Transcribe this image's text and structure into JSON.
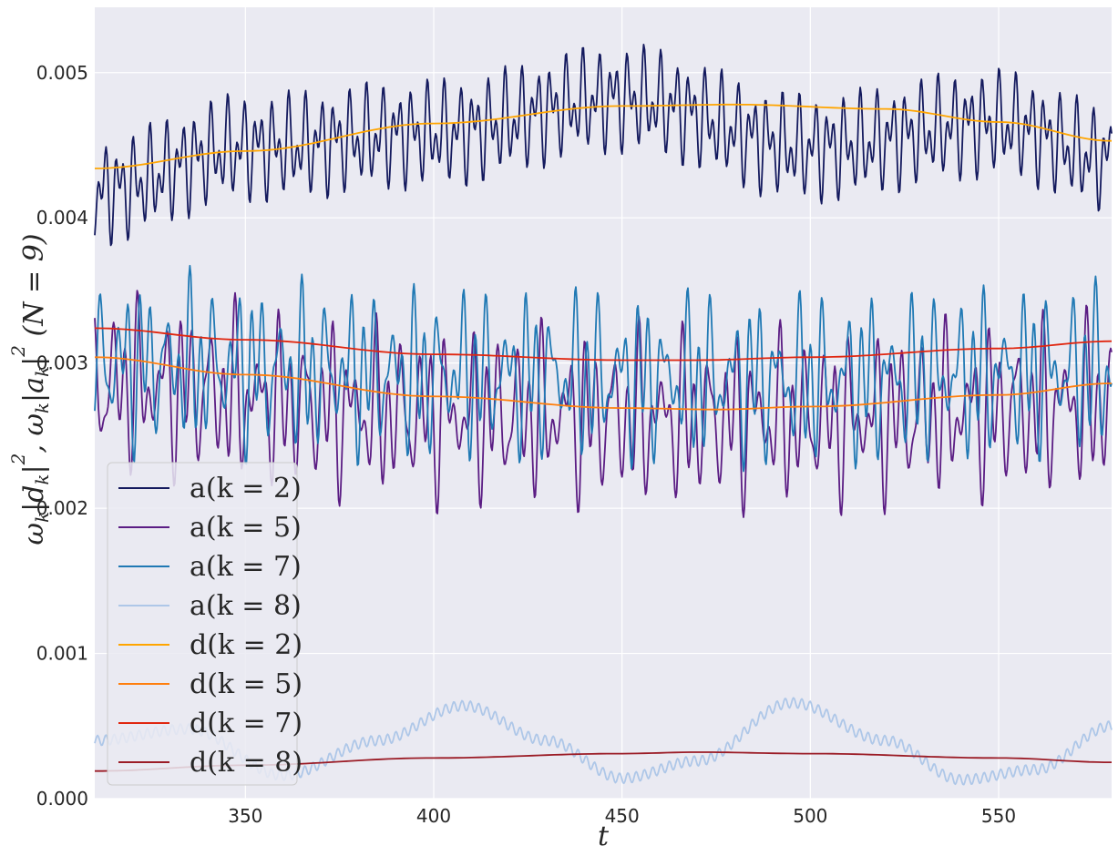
{
  "chart_data": {
    "type": "line",
    "xlabel": "t",
    "ylabel_parts": [
      "ω",
      "k",
      "|d",
      "k",
      "|",
      "2",
      ",   ω",
      "k",
      "|a",
      "k",
      "|",
      "2",
      "   (N = 9)"
    ],
    "xlim": [
      310,
      580
    ],
    "ylim": [
      0.0,
      0.00545
    ],
    "xticks": [
      350,
      400,
      450,
      500,
      550
    ],
    "xtick_labels": [
      "350",
      "400",
      "450",
      "500",
      "550"
    ],
    "yticks": [
      0.0,
      0.001,
      0.002,
      0.003,
      0.004,
      0.005
    ],
    "ytick_labels": [
      "0.000",
      "0.001",
      "0.002",
      "0.003",
      "0.004",
      "0.005"
    ],
    "grid": true,
    "legend_position": "lower-left",
    "colors": {
      "background": "#eaeaf2",
      "grid": "#ffffff"
    },
    "series": [
      {
        "name": "a(k = 2)",
        "color": "#141a5e",
        "kind": "osc",
        "base_x": [
          310,
          350,
          400,
          450,
          500,
          550,
          580
        ],
        "base_y": [
          0.00418,
          0.00448,
          0.00458,
          0.00482,
          0.00448,
          0.00465,
          0.0044
        ],
        "amp": 0.00028,
        "periods": [
          4.1,
          2.3
        ],
        "phase": 0.3
      },
      {
        "name": "a(k = 5)",
        "color": "#5b1d84",
        "kind": "osc",
        "base_x": [
          310,
          400,
          500,
          580
        ],
        "base_y": [
          0.00285,
          0.00265,
          0.00262,
          0.00272
        ],
        "amp": 0.00052,
        "periods": [
          6.3,
          3.7,
          2.9
        ],
        "phase": 1.1
      },
      {
        "name": "a(k = 7)",
        "color": "#2079b4",
        "kind": "osc",
        "base_x": [
          310,
          400,
          500,
          580
        ],
        "base_y": [
          0.003,
          0.00292,
          0.00288,
          0.00295
        ],
        "amp": 0.0005,
        "periods": [
          6.0,
          3.3,
          2.7
        ],
        "phase": 2.2
      },
      {
        "name": "a(k = 8)",
        "color": "#aec7e8",
        "kind": "osc",
        "base_x": [
          310,
          335,
          360,
          385,
          408,
          430,
          450,
          470,
          495,
          520,
          540,
          560,
          580
        ],
        "base_y": [
          0.0004,
          0.00048,
          0.00016,
          0.0004,
          0.00064,
          0.0004,
          0.00014,
          0.00026,
          0.00066,
          0.0004,
          0.00013,
          0.0002,
          0.0005
        ],
        "amp": 2.5e-05,
        "periods": [
          2.2
        ],
        "phase": 0.0
      },
      {
        "name": "d(k = 2)",
        "color": "#ffa500",
        "kind": "smooth",
        "x": [
          310,
          350,
          400,
          450,
          480,
          520,
          550,
          580
        ],
        "y": [
          0.00434,
          0.00446,
          0.00465,
          0.00477,
          0.00478,
          0.00475,
          0.00466,
          0.00453
        ]
      },
      {
        "name": "d(k = 5)",
        "color": "#ff7f0e",
        "kind": "smooth",
        "x": [
          310,
          350,
          400,
          450,
          475,
          500,
          550,
          580
        ],
        "y": [
          0.00304,
          0.00292,
          0.00277,
          0.00269,
          0.00268,
          0.0027,
          0.00278,
          0.00286
        ]
      },
      {
        "name": "d(k = 7)",
        "color": "#e0260f",
        "kind": "smooth",
        "x": [
          310,
          350,
          400,
          450,
          470,
          500,
          550,
          580
        ],
        "y": [
          0.00324,
          0.00316,
          0.00306,
          0.00302,
          0.00302,
          0.00304,
          0.0031,
          0.00315
        ]
      },
      {
        "name": "d(k = 8)",
        "color": "#9b1c26",
        "kind": "smooth",
        "x": [
          310,
          350,
          400,
          450,
          470,
          500,
          550,
          580
        ],
        "y": [
          0.00019,
          0.00023,
          0.00028,
          0.00031,
          0.00032,
          0.00031,
          0.00028,
          0.00025
        ]
      }
    ]
  }
}
